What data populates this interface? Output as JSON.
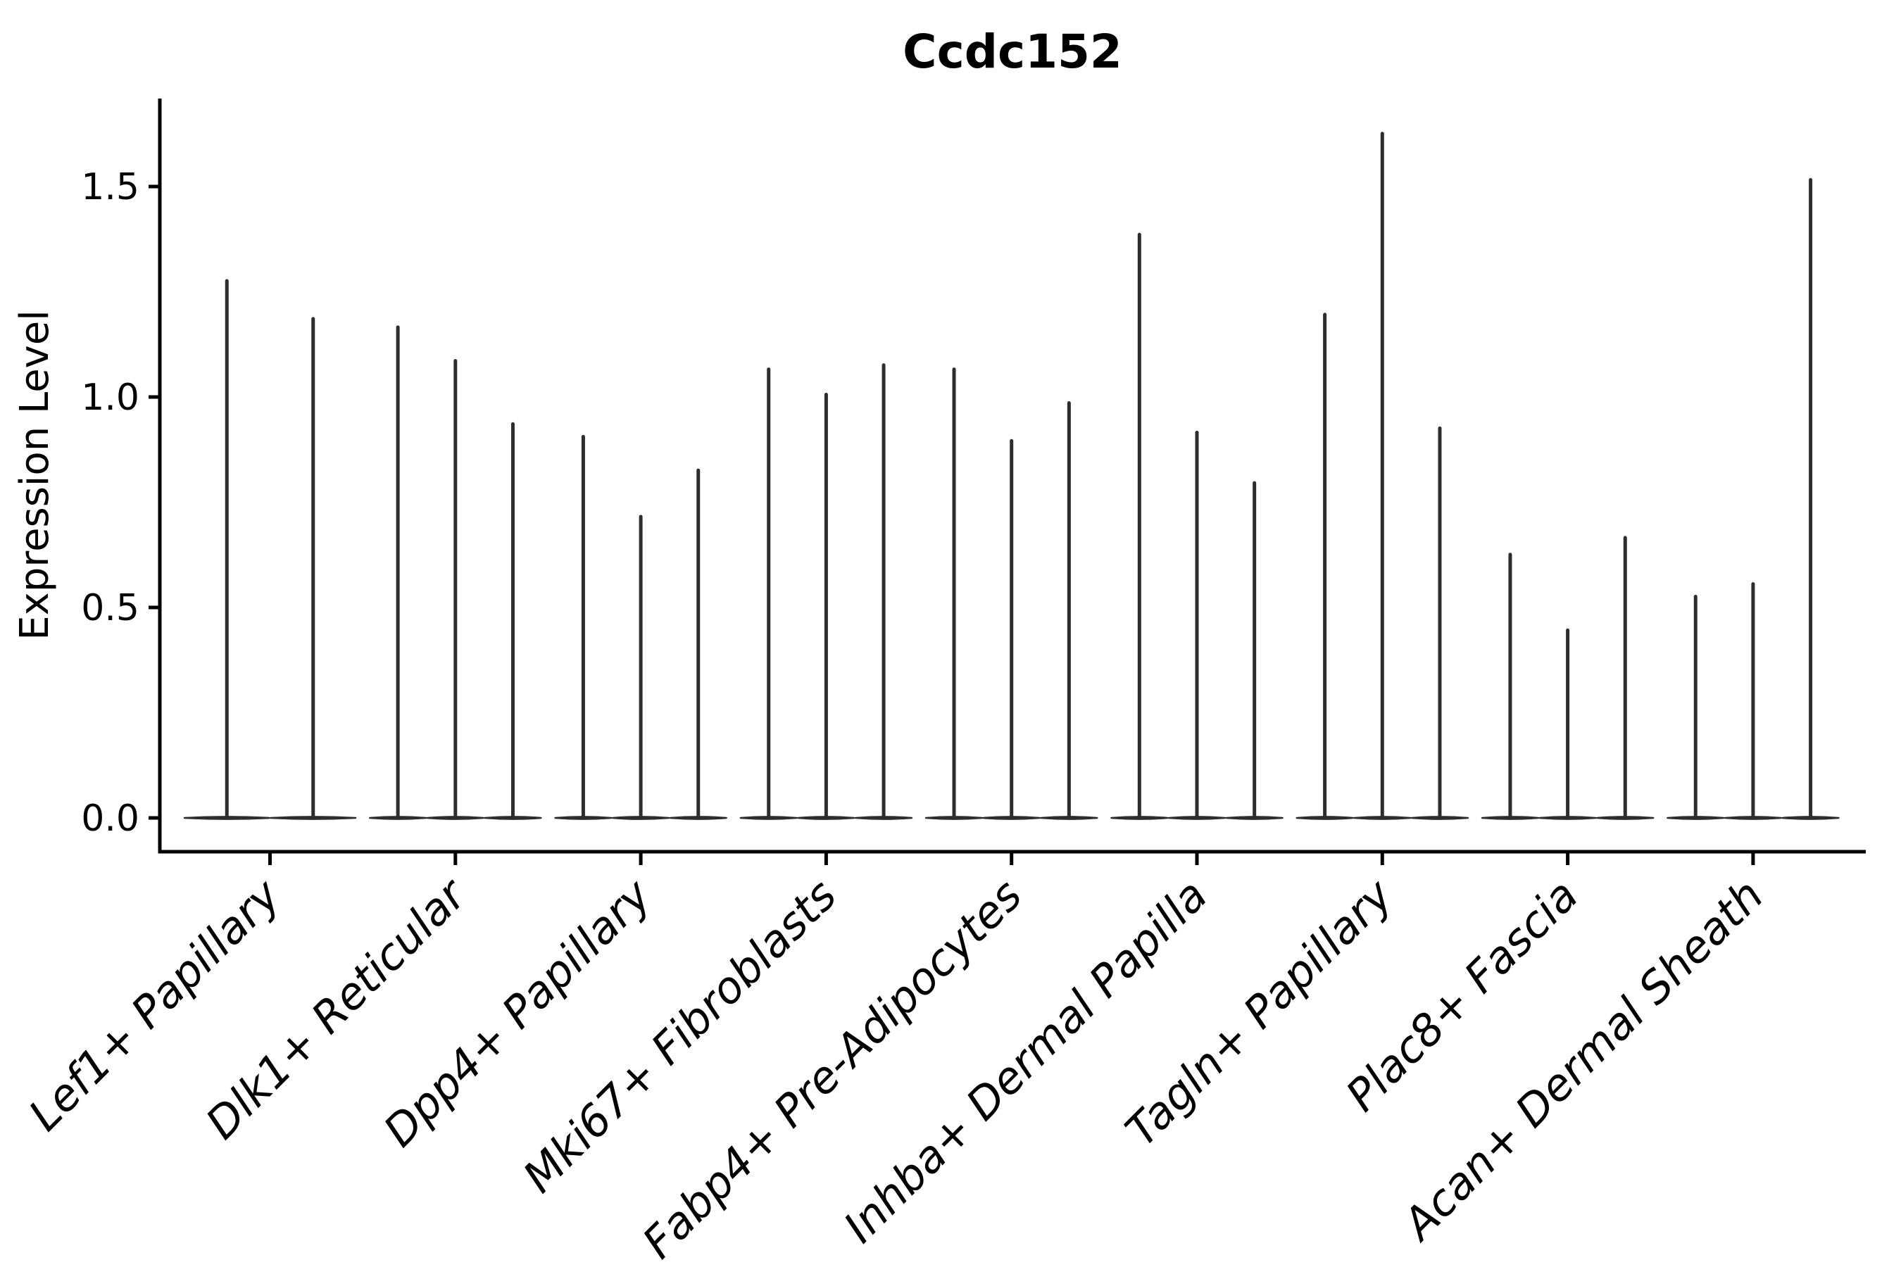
{
  "chart_data": {
    "type": "violin",
    "title": "Ccdc152",
    "xlabel": "",
    "ylabel": "Expression Level",
    "yticks": [
      "0.0",
      "0.5",
      "1.0",
      "1.5"
    ],
    "ytick_values": [
      0.0,
      0.5,
      1.0,
      1.5
    ],
    "ylim": [
      -0.08,
      1.71
    ],
    "grid": false,
    "legend": "none",
    "violin_color": "#2d2d2d",
    "axis_color": "#000000",
    "categories": [
      "Lef1+ Papillary",
      "Dlk1+ Reticular",
      "Dpp4+ Papillary",
      "Mki67+ Fibroblasts",
      "Fabp4+ Pre-Adipocytes",
      "Inhba+ Dermal Papilla",
      "Tagln+ Papillary",
      "Plac8+ Fascia",
      "Acan+ Dermal Sheath"
    ],
    "groups": [
      {
        "category": "Lef1+ Papillary",
        "spike_maxima": [
          1.28,
          1.19
        ]
      },
      {
        "category": "Dlk1+ Reticular",
        "spike_maxima": [
          1.17,
          1.09,
          0.94
        ]
      },
      {
        "category": "Dpp4+ Papillary",
        "spike_maxima": [
          0.91,
          0.72,
          0.83
        ]
      },
      {
        "category": "Mki67+ Fibroblasts",
        "spike_maxima": [
          1.07,
          1.01,
          1.08
        ]
      },
      {
        "category": "Fabp4+ Pre-Adipocytes",
        "spike_maxima": [
          1.07,
          0.9,
          0.99
        ]
      },
      {
        "category": "Inhba+ Dermal Papilla",
        "spike_maxima": [
          1.39,
          0.92,
          0.8
        ]
      },
      {
        "category": "Tagln+ Papillary",
        "spike_maxima": [
          1.2,
          1.63,
          0.93
        ]
      },
      {
        "category": "Plac8+ Fascia",
        "spike_maxima": [
          0.63,
          0.45,
          0.67
        ]
      },
      {
        "category": "Acan+ Dermal Sheath",
        "spike_maxima": [
          0.53,
          0.56,
          1.52
        ]
      }
    ]
  }
}
